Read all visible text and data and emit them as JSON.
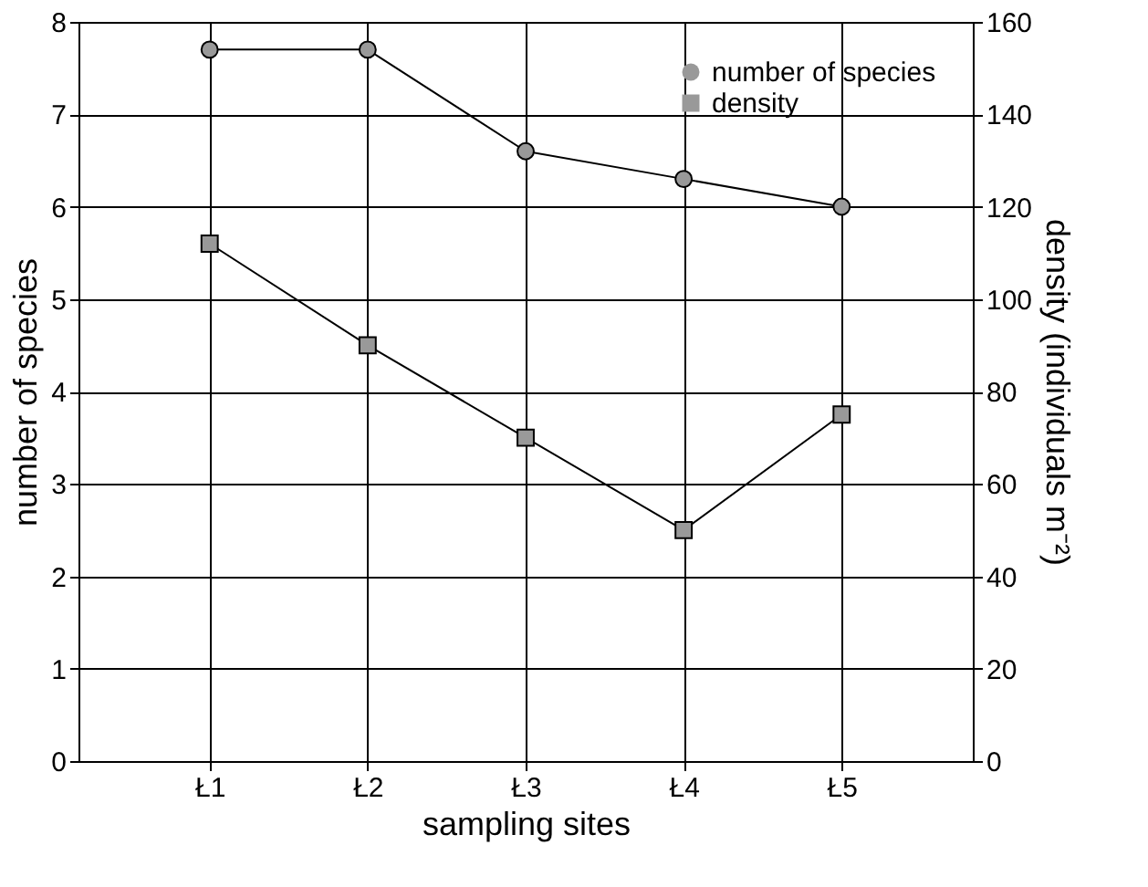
{
  "chart_data": {
    "type": "line",
    "xlabel": "sampling sites",
    "ylabel": "number of species",
    "y2label": "density (individuals m⁻²)",
    "categories": [
      "Ł1",
      "Ł2",
      "Ł3",
      "Ł4",
      "Ł5"
    ],
    "series": [
      {
        "name": "number of species",
        "color": "#999999",
        "marker": "circle",
        "values": [
          7.7,
          7.7,
          6.6,
          6.3,
          6.0
        ]
      },
      {
        "name": "density",
        "color": "#999999",
        "marker": "square",
        "axis": "y2",
        "values": [
          112,
          90,
          70,
          50,
          75
        ]
      }
    ],
    "ylim": [
      0,
      8
    ],
    "yticks": [
      0,
      1,
      2,
      3,
      4,
      5,
      6,
      7,
      8
    ],
    "y2lim": [
      0,
      160
    ],
    "y2ticks": [
      0,
      20,
      40,
      60,
      80,
      100,
      120,
      140,
      160
    ],
    "grid": true,
    "legend": "top right",
    "line_style": "solid"
  }
}
